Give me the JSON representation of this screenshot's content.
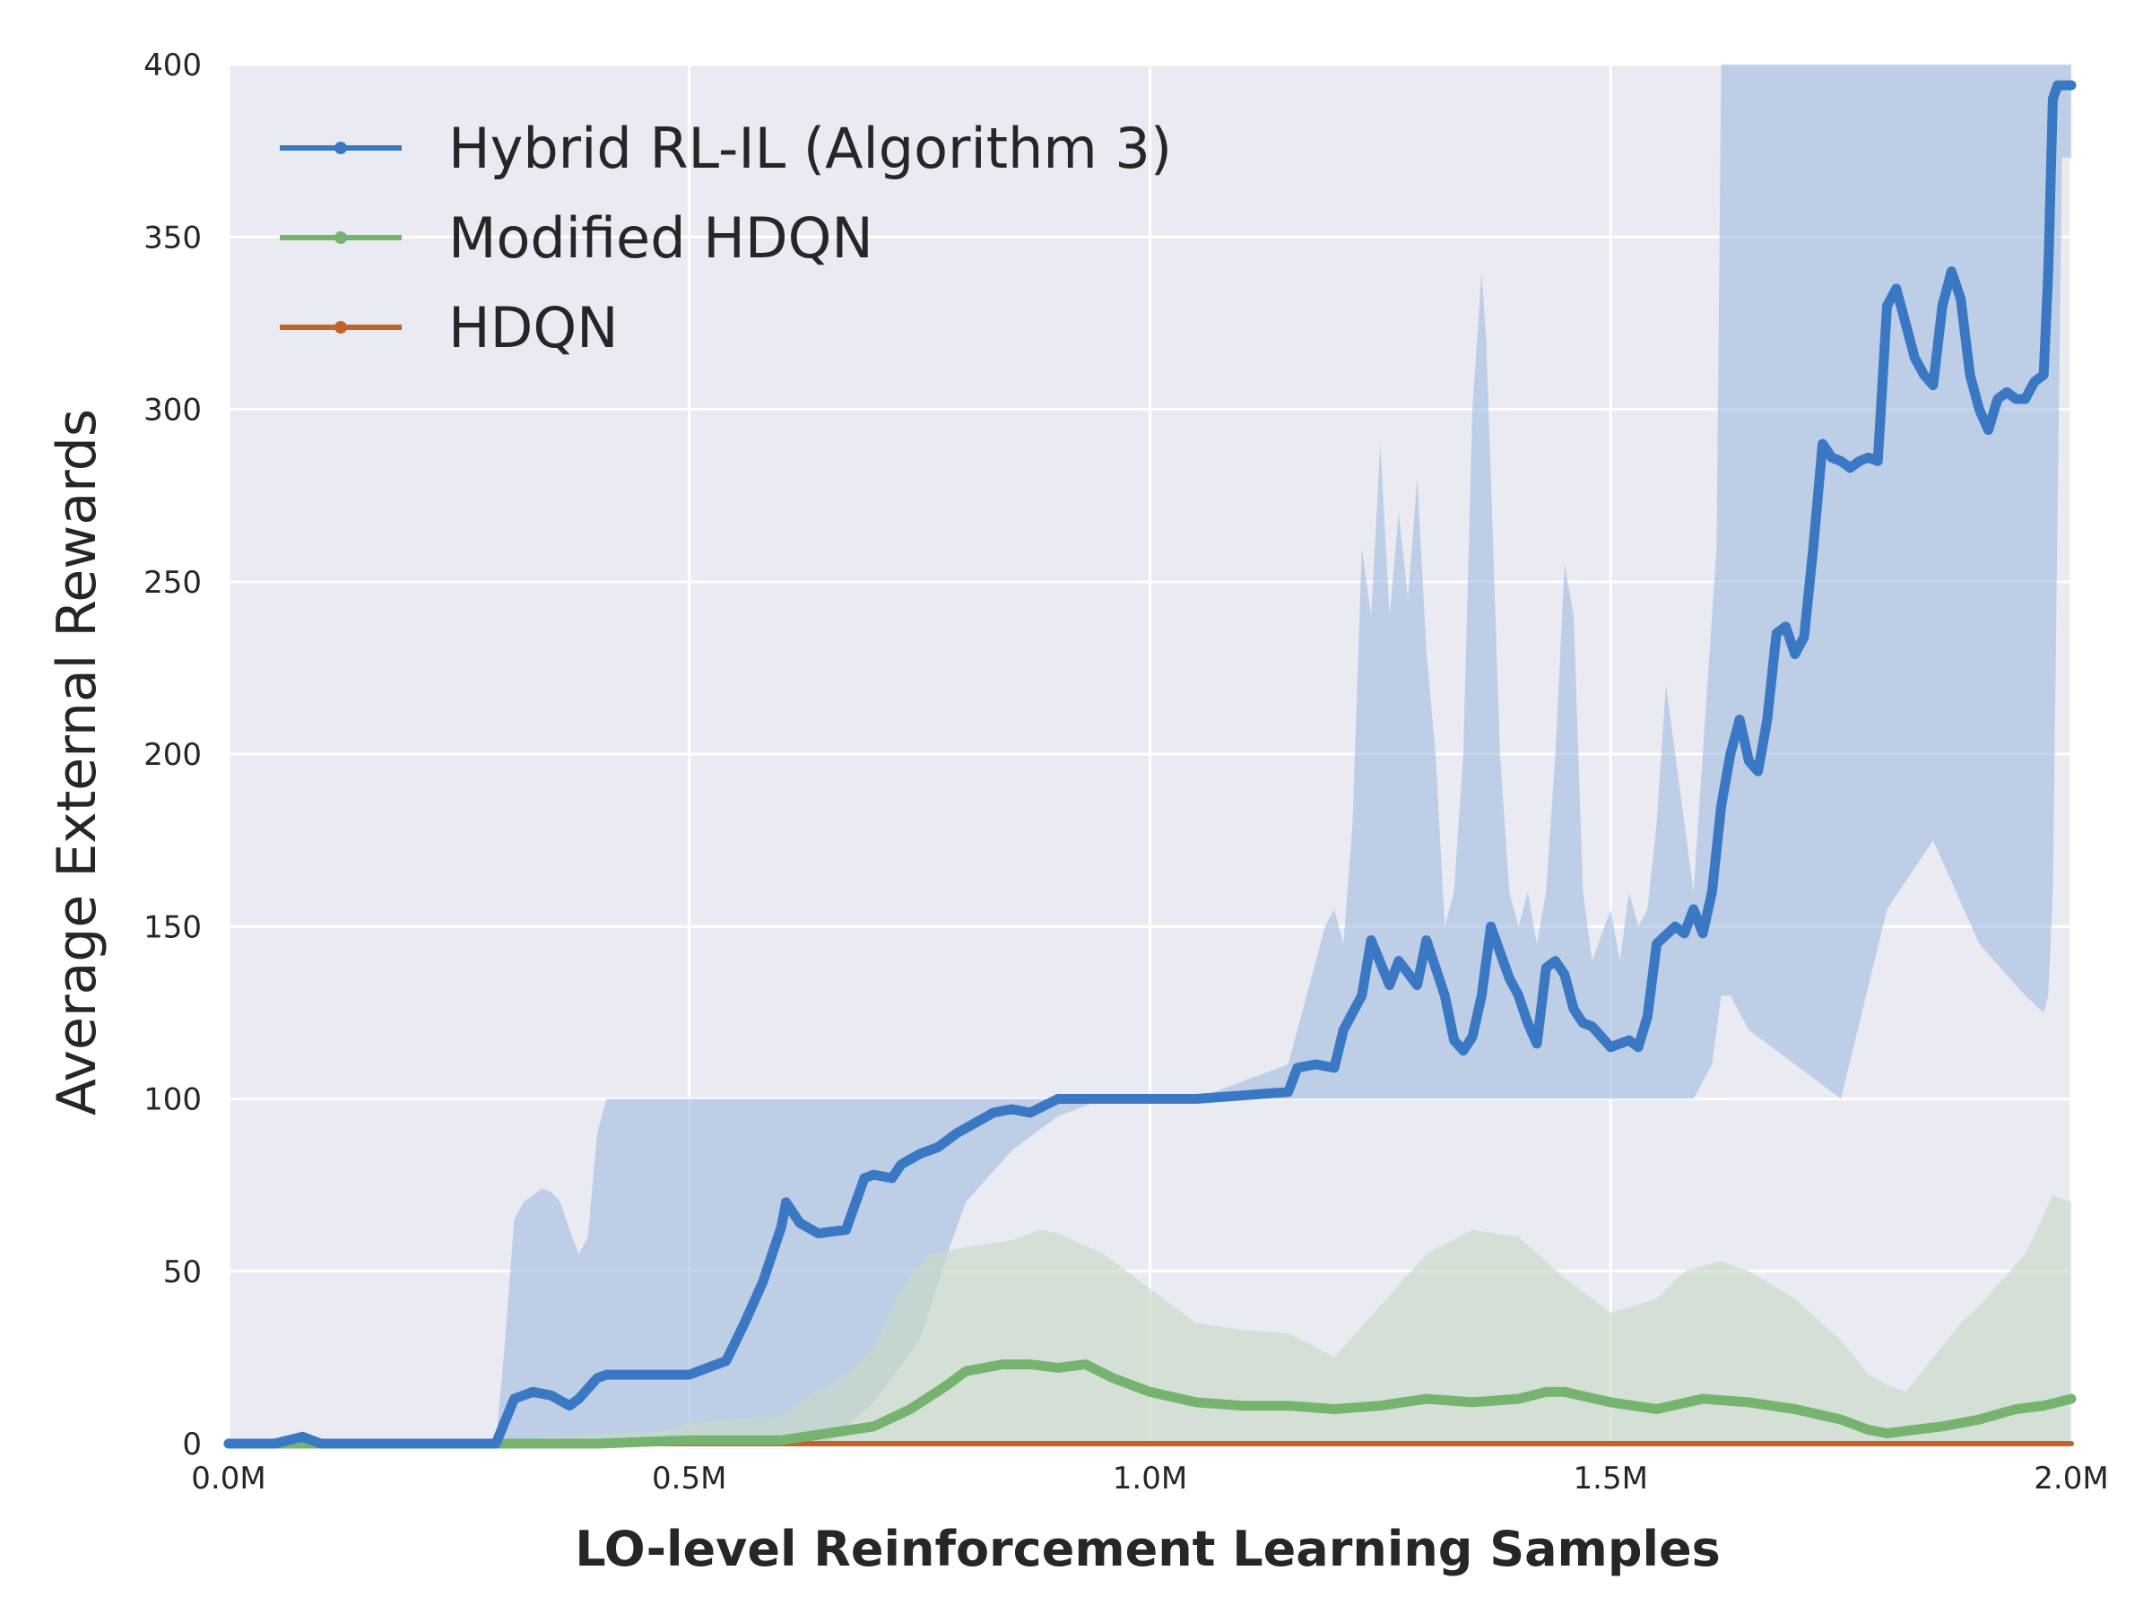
{
  "chart_data": {
    "type": "line",
    "title": "",
    "xlabel": "LO-level Reinforcement Learning Samples",
    "ylabel": "Average External Rewards",
    "xlim": [
      0,
      2.0
    ],
    "ylim": [
      0,
      400
    ],
    "x_unit": "M samples",
    "x_ticks": [
      0.0,
      0.5,
      1.0,
      1.5,
      2.0
    ],
    "x_tick_labels": [
      "0.0M",
      "0.5M",
      "1.0M",
      "1.5M",
      "2.0M"
    ],
    "y_ticks": [
      0,
      50,
      100,
      150,
      200,
      250,
      300,
      350,
      400
    ],
    "y_tick_labels": [
      "0",
      "50",
      "100",
      "150",
      "200",
      "250",
      "300",
      "350",
      "400"
    ],
    "grid": true,
    "legend_position": "top-left",
    "series": [
      {
        "name": "Hybrid RL-IL (Algorithm 3)",
        "color": "#3a78c4",
        "band_color": "#a6bfe0",
        "x": [
          0,
          0.05,
          0.08,
          0.1,
          0.2,
          0.29,
          0.31,
          0.33,
          0.35,
          0.37,
          0.38,
          0.4,
          0.41,
          0.45,
          0.5,
          0.52,
          0.54,
          0.56,
          0.58,
          0.6,
          0.605,
          0.62,
          0.64,
          0.67,
          0.69,
          0.7,
          0.72,
          0.73,
          0.75,
          0.77,
          0.79,
          0.81,
          0.83,
          0.85,
          0.87,
          0.9,
          0.95,
          1.0,
          1.05,
          1.1,
          1.15,
          1.16,
          1.18,
          1.2,
          1.21,
          1.23,
          1.24,
          1.26,
          1.27,
          1.29,
          1.3,
          1.32,
          1.33,
          1.34,
          1.35,
          1.36,
          1.37,
          1.39,
          1.4,
          1.41,
          1.42,
          1.43,
          1.44,
          1.45,
          1.46,
          1.47,
          1.48,
          1.5,
          1.52,
          1.53,
          1.54,
          1.55,
          1.57,
          1.58,
          1.59,
          1.6,
          1.61,
          1.62,
          1.63,
          1.64,
          1.65,
          1.66,
          1.67,
          1.68,
          1.69,
          1.7,
          1.71,
          1.72,
          1.73,
          1.74,
          1.75,
          1.76,
          1.77,
          1.78,
          1.79,
          1.8,
          1.81,
          1.82,
          1.83,
          1.84,
          1.85,
          1.86,
          1.87,
          1.88,
          1.89,
          1.9,
          1.91,
          1.92,
          1.93,
          1.94,
          1.95,
          1.96,
          1.97,
          1.975,
          1.98,
          1.985,
          2.0
        ],
        "values": [
          0,
          0,
          2,
          0,
          0,
          0,
          13,
          15,
          14,
          11,
          13,
          19,
          20,
          20,
          20,
          22,
          24,
          35,
          47,
          63,
          70,
          64,
          61,
          62,
          77,
          78,
          77,
          81,
          84,
          86,
          90,
          93,
          96,
          97,
          96,
          100,
          100,
          100,
          100,
          101,
          102,
          109,
          110,
          109,
          120,
          130,
          146,
          133,
          140,
          133,
          146,
          130,
          117,
          114,
          118,
          130,
          150,
          135,
          130,
          122,
          116,
          138,
          140,
          136,
          126,
          122,
          121,
          115,
          117,
          115,
          124,
          145,
          150,
          148,
          155,
          148,
          160,
          185,
          200,
          210,
          198,
          195,
          210,
          235,
          237,
          229,
          234,
          260,
          290,
          286,
          285,
          283,
          285,
          286,
          285,
          330,
          335,
          325,
          315,
          310,
          307,
          330,
          340,
          332,
          310,
          300,
          294,
          303,
          305,
          303,
          303,
          308,
          310,
          340,
          390,
          394,
          394
        ]
      },
      {
        "name": "Modified HDQN",
        "color": "#76b36f",
        "band_color": "#c8dac6",
        "x": [
          0,
          0.2,
          0.4,
          0.5,
          0.55,
          0.6,
          0.65,
          0.7,
          0.74,
          0.78,
          0.8,
          0.84,
          0.87,
          0.9,
          0.93,
          0.96,
          1.0,
          1.05,
          1.1,
          1.15,
          1.2,
          1.25,
          1.3,
          1.35,
          1.4,
          1.43,
          1.45,
          1.5,
          1.55,
          1.6,
          1.65,
          1.7,
          1.75,
          1.78,
          1.8,
          1.83,
          1.86,
          1.9,
          1.94,
          1.97,
          2.0
        ],
        "values": [
          0,
          0,
          0,
          1,
          1,
          1,
          3,
          5,
          10,
          17,
          21,
          23,
          23,
          22,
          23,
          19,
          15,
          12,
          11,
          11,
          10,
          11,
          13,
          12,
          13,
          15,
          15,
          12,
          10,
          13,
          12,
          10,
          7,
          4,
          3,
          4,
          5,
          7,
          10,
          11,
          13
        ]
      },
      {
        "name": "HDQN",
        "color": "#c4622a",
        "band_color": "#e8b898",
        "x": [
          0,
          0.63,
          2.0
        ],
        "values": [
          0,
          0,
          0
        ]
      }
    ],
    "confidence_bands": [
      {
        "series": "Hybrid RL-IL (Algorithm 3)",
        "x": [
          0,
          0.29,
          0.3,
          0.31,
          0.32,
          0.33,
          0.34,
          0.35,
          0.36,
          0.37,
          0.38,
          0.39,
          0.4,
          0.41,
          0.45,
          0.5,
          0.55,
          0.6,
          0.65,
          0.7,
          0.75,
          0.78,
          0.8,
          0.85,
          0.9,
          0.95,
          1.0,
          1.05,
          1.1,
          1.15,
          1.16,
          1.18,
          1.19,
          1.2,
          1.21,
          1.22,
          1.23,
          1.24,
          1.25,
          1.26,
          1.27,
          1.28,
          1.29,
          1.3,
          1.31,
          1.32,
          1.33,
          1.34,
          1.35,
          1.36,
          1.365,
          1.37,
          1.38,
          1.39,
          1.4,
          1.41,
          1.42,
          1.43,
          1.44,
          1.45,
          1.46,
          1.47,
          1.48,
          1.5,
          1.51,
          1.52,
          1.53,
          1.54,
          1.55,
          1.56,
          1.57,
          1.58,
          1.59,
          1.6,
          1.61,
          1.615,
          1.62,
          1.63,
          1.64,
          1.65,
          1.7,
          1.75,
          1.8,
          1.85,
          1.9,
          1.95,
          1.97,
          1.975,
          1.98,
          1.99,
          2.0
        ],
        "upper": [
          0,
          0,
          30,
          65,
          70,
          72,
          74,
          73,
          70,
          62,
          55,
          60,
          90,
          100,
          100,
          100,
          100,
          100,
          100,
          100,
          100,
          100,
          100,
          100,
          100,
          100,
          100,
          100,
          105,
          110,
          120,
          140,
          150,
          155,
          145,
          180,
          260,
          240,
          290,
          240,
          270,
          245,
          280,
          230,
          200,
          150,
          160,
          200,
          300,
          340,
          320,
          280,
          200,
          160,
          150,
          160,
          145,
          160,
          200,
          255,
          240,
          160,
          140,
          155,
          140,
          160,
          150,
          155,
          180,
          220,
          200,
          180,
          160,
          200,
          240,
          260,
          400,
          400,
          400,
          400,
          400,
          400,
          400,
          400,
          400,
          400,
          400,
          400,
          400,
          400,
          400
        ],
        "lower": [
          0,
          0,
          0,
          0,
          0,
          0,
          0,
          0,
          0,
          0,
          0,
          0,
          0,
          0,
          0,
          0,
          0,
          0,
          0,
          12,
          30,
          55,
          70,
          85,
          95,
          100,
          100,
          100,
          100,
          100,
          100,
          100,
          100,
          100,
          100,
          100,
          100,
          100,
          100,
          100,
          100,
          100,
          100,
          100,
          100,
          100,
          100,
          100,
          100,
          100,
          100,
          100,
          100,
          100,
          100,
          100,
          100,
          100,
          100,
          100,
          100,
          100,
          100,
          100,
          100,
          100,
          100,
          100,
          100,
          100,
          100,
          100,
          100,
          105,
          110,
          120,
          130,
          130,
          125,
          120,
          110,
          100,
          155,
          175,
          145,
          130,
          125,
          130,
          160,
          373,
          373
        ]
      },
      {
        "series": "Modified HDQN",
        "x": [
          0,
          0.3,
          0.48,
          0.5,
          0.6,
          0.63,
          0.67,
          0.7,
          0.73,
          0.76,
          0.78,
          0.8,
          0.85,
          0.88,
          0.9,
          0.95,
          1.0,
          1.05,
          1.1,
          1.15,
          1.18,
          1.2,
          1.25,
          1.3,
          1.35,
          1.4,
          1.45,
          1.5,
          1.55,
          1.58,
          1.62,
          1.65,
          1.7,
          1.75,
          1.78,
          1.8,
          1.82,
          1.85,
          1.88,
          1.9,
          1.95,
          1.98,
          2.0
        ],
        "upper": [
          0,
          1,
          4,
          6,
          8,
          14,
          20,
          28,
          45,
          55,
          56,
          57,
          59,
          62,
          61,
          55,
          45,
          35,
          33,
          32,
          28,
          25,
          40,
          55,
          62,
          60,
          48,
          38,
          42,
          50,
          53,
          50,
          42,
          30,
          20,
          17,
          15,
          25,
          35,
          40,
          55,
          72,
          70
        ],
        "lower": [
          0,
          0,
          0,
          0,
          0,
          0,
          0,
          0,
          0,
          0,
          0,
          0,
          0,
          0,
          0,
          0,
          0,
          0,
          0,
          0,
          0,
          0,
          0,
          0,
          0,
          0,
          0,
          0,
          0,
          0,
          0,
          0,
          0,
          0,
          0,
          0,
          0,
          0,
          0,
          0,
          0,
          0,
          0
        ]
      }
    ]
  }
}
